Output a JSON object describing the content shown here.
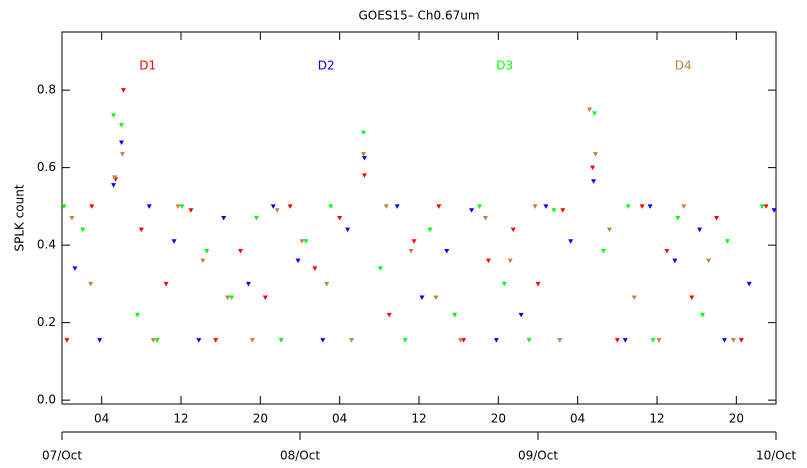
{
  "chart_data": {
    "type": "scatter",
    "title": "GOES15– Ch0.67um",
    "y_label": "SPLK count",
    "xlim": [
      0,
      72
    ],
    "ylim": [
      -0.01,
      0.95
    ],
    "xticks": [
      {
        "value": 4,
        "label": "04"
      },
      12,
      20,
      {
        "value": 28,
        "label": "04"
      },
      {
        "value": 36,
        "label": "12"
      },
      {
        "value": 44,
        "label": "20"
      },
      {
        "value": 52,
        "label": "04"
      },
      {
        "value": 60,
        "label": "12"
      },
      {
        "value": 68,
        "label": "20"
      }
    ],
    "date_ticks": [
      {
        "value": 0,
        "label": "07/Oct"
      },
      {
        "value": 24,
        "label": "08/Oct"
      },
      {
        "value": 48,
        "label": "09/Oct"
      },
      {
        "value": 72,
        "label": "10/Oct"
      }
    ],
    "yticks": [
      {
        "value": 0,
        "label": "0.0"
      },
      0.2,
      0.4,
      0.6,
      0.8
    ],
    "series": [
      {
        "name": "D1",
        "color": "#ff0000",
        "x": [
          0.5,
          3,
          5.4,
          6.2,
          8,
          10.5,
          13,
          15.5,
          18,
          20.5,
          23,
          25.5,
          28,
          30.5,
          33,
          35.5,
          38,
          40.5,
          43,
          45.5,
          48,
          50.5,
          53.5,
          56,
          58.5,
          61,
          63.5,
          66,
          68.5,
          71
        ],
        "values": [
          0.155,
          0.5,
          0.57,
          0.8,
          0.44,
          0.3,
          0.49,
          0.155,
          0.385,
          0.265,
          0.5,
          0.34,
          0.47,
          0.58,
          0.22,
          0.41,
          0.5,
          0.155,
          0.36,
          0.44,
          0.3,
          0.49,
          0.6,
          0.155,
          0.5,
          0.385,
          0.265,
          0.47,
          0.155,
          0.5
        ]
      },
      {
        "name": "D2",
        "color": "#0000ff",
        "x": [
          1.3,
          3.8,
          5.2,
          6.0,
          8.8,
          11.3,
          13.8,
          16.3,
          18.8,
          21.3,
          23.8,
          26.3,
          28.8,
          30.5,
          33.8,
          36.3,
          38.8,
          41.3,
          43.8,
          46.3,
          48.8,
          51.3,
          53.6,
          56.8,
          59.3,
          61.8,
          64.3,
          66.8,
          69.3,
          71.8
        ],
        "values": [
          0.34,
          0.155,
          0.555,
          0.665,
          0.5,
          0.41,
          0.155,
          0.47,
          0.3,
          0.5,
          0.36,
          0.155,
          0.44,
          0.625,
          0.5,
          0.265,
          0.385,
          0.49,
          0.155,
          0.22,
          0.5,
          0.41,
          0.565,
          0.155,
          0.5,
          0.36,
          0.44,
          0.155,
          0.3,
          0.49
        ]
      },
      {
        "name": "D3",
        "color": "#00ff00",
        "x": [
          0.2,
          2.1,
          5.2,
          6.0,
          7.6,
          9.6,
          12.1,
          14.6,
          17.1,
          19.6,
          22.1,
          24.6,
          27.1,
          30.4,
          32.1,
          34.6,
          37.1,
          39.6,
          42.1,
          44.6,
          47.1,
          49.6,
          53.7,
          54.6,
          57.1,
          59.6,
          62.1,
          64.6,
          67.1,
          70.6
        ],
        "values": [
          0.5,
          0.44,
          0.735,
          0.71,
          0.22,
          0.155,
          0.5,
          0.385,
          0.265,
          0.47,
          0.155,
          0.41,
          0.5,
          0.69,
          0.34,
          0.155,
          0.44,
          0.22,
          0.5,
          0.3,
          0.155,
          0.49,
          0.74,
          0.385,
          0.5,
          0.155,
          0.47,
          0.22,
          0.41,
          0.5
        ]
      },
      {
        "name": "D4",
        "color": "#c08040",
        "x": [
          1.0,
          2.9,
          5.3,
          6.1,
          9.2,
          11.7,
          14.2,
          16.7,
          19.2,
          21.7,
          24.2,
          26.7,
          29.2,
          30.4,
          32.7,
          35.2,
          37.7,
          40.2,
          42.7,
          45.2,
          47.7,
          50.2,
          53.2,
          53.8,
          55.2,
          57.7,
          60.2,
          62.7,
          65.2,
          67.7
        ],
        "values": [
          0.47,
          0.3,
          0.575,
          0.635,
          0.155,
          0.5,
          0.36,
          0.265,
          0.155,
          0.49,
          0.41,
          0.3,
          0.155,
          0.635,
          0.5,
          0.385,
          0.265,
          0.155,
          0.47,
          0.36,
          0.5,
          0.155,
          0.75,
          0.635,
          0.44,
          0.265,
          0.155,
          0.5,
          0.36,
          0.155
        ]
      }
    ]
  }
}
